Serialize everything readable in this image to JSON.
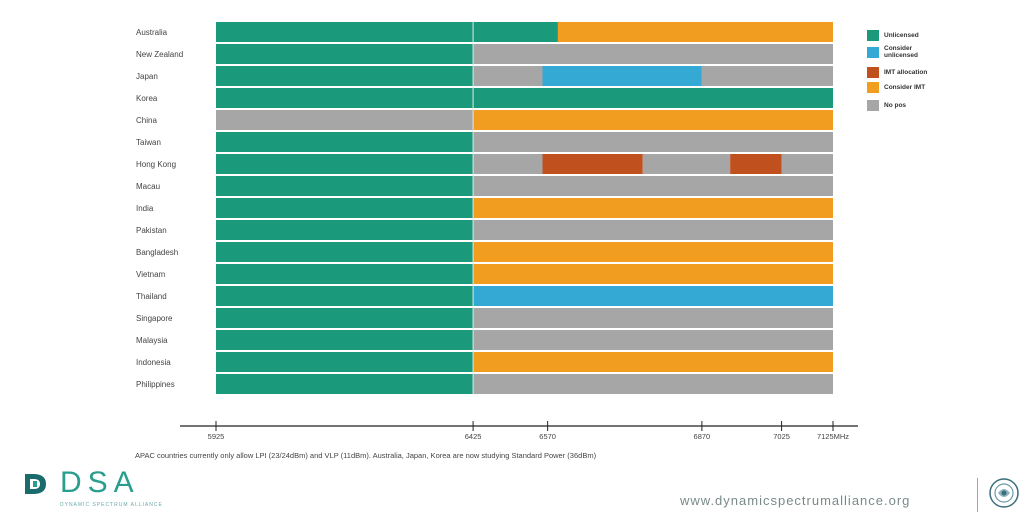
{
  "chart_data": {
    "type": "bar",
    "orientation": "horizontal-timeline",
    "title": "",
    "x_unit": "MHz",
    "xlim": [
      5925,
      7125
    ],
    "x_ticks": [
      {
        "value": 5925,
        "label": "5925"
      },
      {
        "value": 6425,
        "label": "6425"
      },
      {
        "value": 6570,
        "label": "6570"
      },
      {
        "value": 6870,
        "label": "6870"
      },
      {
        "value": 7025,
        "label": "7025"
      },
      {
        "value": 7125,
        "label": "7125MHz"
      }
    ],
    "legend_position": "top-right",
    "categories_legend": [
      {
        "key": "unlicensed",
        "label": "Unlicensed",
        "color": "#1a9a7b"
      },
      {
        "key": "consider_unlicensed",
        "label": "Consider unlicensed",
        "color": "#34a9d4"
      },
      {
        "key": "imt_allocation",
        "label": "IMT allocation",
        "color": "#c1501f"
      },
      {
        "key": "consider_imt",
        "label": "Consider IMT",
        "color": "#f19d1f"
      },
      {
        "key": "no_pos",
        "label": "No pos",
        "color": "#a6a6a6"
      }
    ],
    "rows": [
      {
        "country": "Australia",
        "segments": [
          [
            5925,
            6425,
            "unlicensed"
          ],
          [
            6425,
            6590,
            "unlicensed"
          ],
          [
            6590,
            7125,
            "consider_imt"
          ]
        ]
      },
      {
        "country": "New Zealand",
        "segments": [
          [
            5925,
            6425,
            "unlicensed"
          ],
          [
            6425,
            7125,
            "no_pos"
          ]
        ]
      },
      {
        "country": "Japan",
        "segments": [
          [
            5925,
            6425,
            "unlicensed"
          ],
          [
            6425,
            6560,
            "no_pos"
          ],
          [
            6560,
            6870,
            "consider_unlicensed"
          ],
          [
            6870,
            7125,
            "no_pos"
          ]
        ]
      },
      {
        "country": "Korea",
        "segments": [
          [
            5925,
            6425,
            "unlicensed"
          ],
          [
            6425,
            7125,
            "unlicensed"
          ]
        ]
      },
      {
        "country": "China",
        "segments": [
          [
            5925,
            6425,
            "no_pos"
          ],
          [
            6425,
            7125,
            "consider_imt"
          ]
        ]
      },
      {
        "country": "Taiwan",
        "segments": [
          [
            5925,
            6425,
            "unlicensed"
          ],
          [
            6425,
            7125,
            "no_pos"
          ]
        ]
      },
      {
        "country": "Hong Kong",
        "segments": [
          [
            5925,
            6425,
            "unlicensed"
          ],
          [
            6425,
            6560,
            "no_pos"
          ],
          [
            6560,
            6755,
            "imt_allocation"
          ],
          [
            6755,
            6925,
            "no_pos"
          ],
          [
            6925,
            7025,
            "imt_allocation"
          ],
          [
            7025,
            7125,
            "no_pos"
          ]
        ]
      },
      {
        "country": "Macau",
        "segments": [
          [
            5925,
            6425,
            "unlicensed"
          ],
          [
            6425,
            7125,
            "no_pos"
          ]
        ]
      },
      {
        "country": "India",
        "segments": [
          [
            5925,
            6425,
            "unlicensed"
          ],
          [
            6425,
            7125,
            "consider_imt"
          ]
        ]
      },
      {
        "country": "Pakistan",
        "segments": [
          [
            5925,
            6425,
            "unlicensed"
          ],
          [
            6425,
            7125,
            "no_pos"
          ]
        ]
      },
      {
        "country": "Bangladesh",
        "segments": [
          [
            5925,
            6425,
            "unlicensed"
          ],
          [
            6425,
            7125,
            "consider_imt"
          ]
        ]
      },
      {
        "country": "Vietnam",
        "segments": [
          [
            5925,
            6425,
            "unlicensed"
          ],
          [
            6425,
            7125,
            "consider_imt"
          ]
        ]
      },
      {
        "country": "Thailand",
        "segments": [
          [
            5925,
            6425,
            "unlicensed"
          ],
          [
            6425,
            7125,
            "consider_unlicensed"
          ]
        ]
      },
      {
        "country": "Singapore",
        "segments": [
          [
            5925,
            6425,
            "unlicensed"
          ],
          [
            6425,
            7125,
            "no_pos"
          ]
        ]
      },
      {
        "country": "Malaysia",
        "segments": [
          [
            5925,
            6425,
            "unlicensed"
          ],
          [
            6425,
            7125,
            "no_pos"
          ]
        ]
      },
      {
        "country": "Indonesia",
        "segments": [
          [
            5925,
            6425,
            "unlicensed"
          ],
          [
            6425,
            7125,
            "consider_imt"
          ]
        ]
      },
      {
        "country": "Philippines",
        "segments": [
          [
            5925,
            6425,
            "unlicensed"
          ],
          [
            6425,
            7125,
            "no_pos"
          ]
        ]
      }
    ],
    "footnote": "APAC countries currently only allow LPI (23/24dBm) and VLP (11dBm). Australia, Japan, Korea are now studying Standard Power (36dBm)"
  },
  "branding": {
    "logo_text": "DSA",
    "logo_subtitle": "DYNAMIC SPECTRUM ALLIANCE",
    "url": "www.dynamicspectrumalliance.org"
  },
  "colors": {
    "brand": "#2a9d8f"
  }
}
